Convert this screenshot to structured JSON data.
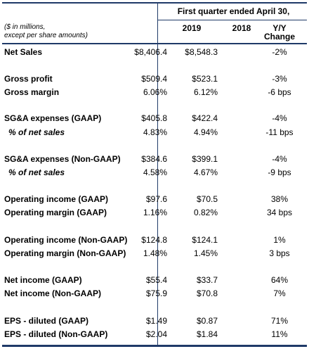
{
  "header": {
    "period": "First quarter ended April 30,",
    "note_line1": "($ in millions,",
    "note_line2": "except per share amounts)",
    "col_2019": "2019",
    "col_2018": "2018",
    "col_yy_1": "Y/Y",
    "col_yy_2": "Change"
  },
  "rows": [
    {
      "label": "Net Sales",
      "v2019": "$8,406.4",
      "v2018": "$8,548.3",
      "change": "-2%",
      "italic": false
    },
    {
      "label": "Gross profit",
      "v2019": "$509.4",
      "v2018": "$523.1",
      "change": "-3%",
      "italic": false
    },
    {
      "label": "Gross margin",
      "v2019": "6.06%",
      "v2018": "6.12%",
      "change": "-6 bps",
      "italic": false
    },
    {
      "label": "SG&A expenses (GAAP)",
      "v2019": "$405.8",
      "v2018": "$422.4",
      "change": "-4%",
      "italic": false
    },
    {
      "label": "% of net sales",
      "v2019": "4.83%",
      "v2018": "4.94%",
      "change": "-11 bps",
      "italic": true
    },
    {
      "label": "SG&A expenses (Non-GAAP)",
      "v2019": "$384.6",
      "v2018": "$399.1",
      "change": "-4%",
      "italic": false
    },
    {
      "label": "% of net sales",
      "v2019": "4.58%",
      "v2018": "4.67%",
      "change": "-9 bps",
      "italic": true
    },
    {
      "label": "Operating income (GAAP)",
      "v2019": "$97.6",
      "v2018": "$70.5",
      "change": "38%",
      "italic": false
    },
    {
      "label": "Operating margin (GAAP)",
      "v2019": "1.16%",
      "v2018": "0.82%",
      "change": "34 bps",
      "italic": false
    },
    {
      "label": "Operating income (Non-GAAP)",
      "v2019": "$124.8",
      "v2018": "$124.1",
      "change": "1%",
      "italic": false
    },
    {
      "label": "Operating margin (Non-GAAP)",
      "v2019": "1.48%",
      "v2018": "1.45%",
      "change": "3 bps",
      "italic": false
    },
    {
      "label": "Net income (GAAP)",
      "v2019": "$55.4",
      "v2018": "$33.7",
      "change": "64%",
      "italic": false
    },
    {
      "label": "Net income (Non-GAAP)",
      "v2019": "$75.9",
      "v2018": "$70.8",
      "change": "7%",
      "italic": false
    },
    {
      "label": "EPS - diluted (GAAP)",
      "v2019": "$1.49",
      "v2018": "$0.87",
      "change": "71%",
      "italic": false
    },
    {
      "label": "EPS - diluted (Non-GAAP)",
      "v2019": "$2.04",
      "v2018": "$1.84",
      "change": "11%",
      "italic": false
    }
  ],
  "colors": {
    "rule": "#1f3a68"
  }
}
